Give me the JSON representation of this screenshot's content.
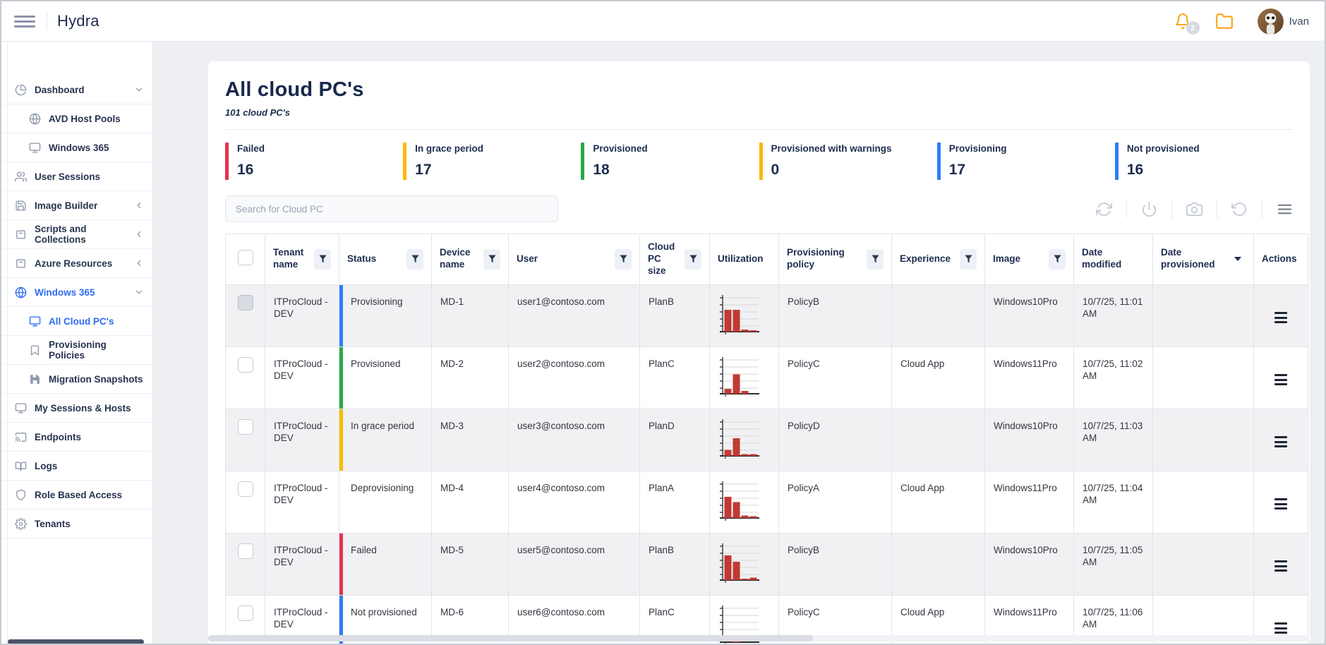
{
  "topbar": {
    "brand": "Hydra",
    "notification_badge": "2",
    "user_name": "Ivan"
  },
  "sidebar": {
    "items": [
      {
        "label": "Dashboard",
        "icon": "pie-chart",
        "level": 0,
        "chevron": "down",
        "active": false
      },
      {
        "label": "AVD Host Pools",
        "icon": "globe",
        "level": 1,
        "chevron": "",
        "active": false
      },
      {
        "label": "Windows 365",
        "icon": "monitor",
        "level": 1,
        "chevron": "",
        "active": false
      },
      {
        "label": "User Sessions",
        "icon": "users",
        "level": 0,
        "chevron": "",
        "active": false
      },
      {
        "label": "Image Builder",
        "icon": "save",
        "level": 0,
        "chevron": "left",
        "active": false
      },
      {
        "label": "Scripts and Collections",
        "icon": "archive",
        "level": 0,
        "chevron": "left",
        "active": false
      },
      {
        "label": "Azure Resources",
        "icon": "archive",
        "level": 0,
        "chevron": "left",
        "active": false
      },
      {
        "label": "Windows 365",
        "icon": "globe",
        "level": 0,
        "chevron": "down",
        "active": true
      },
      {
        "label": "All Cloud PC's",
        "icon": "monitor",
        "level": 1,
        "chevron": "",
        "active": true
      },
      {
        "label": "Provisioning Policies",
        "icon": "bookmark",
        "level": 1,
        "chevron": "",
        "active": false
      },
      {
        "label": "Migration Snapshots",
        "icon": "save-filled",
        "level": 1,
        "chevron": "",
        "active": false
      },
      {
        "label": "My Sessions & Hosts",
        "icon": "monitor",
        "level": 0,
        "chevron": "",
        "active": false
      },
      {
        "label": "Endpoints",
        "icon": "cast",
        "level": 0,
        "chevron": "",
        "active": false
      },
      {
        "label": "Logs",
        "icon": "book",
        "level": 0,
        "chevron": "",
        "active": false
      },
      {
        "label": "Role Based Access",
        "icon": "shield",
        "level": 0,
        "chevron": "",
        "active": false
      },
      {
        "label": "Tenants",
        "icon": "gear",
        "level": 0,
        "chevron": "",
        "active": false
      }
    ]
  },
  "page": {
    "title": "All cloud PC's",
    "subtitle": "101 cloud PC's"
  },
  "stats": [
    {
      "label": "Failed",
      "value": "16",
      "color": "#e23450"
    },
    {
      "label": "In grace period",
      "value": "17",
      "color": "#f7ba00"
    },
    {
      "label": "Provisioned",
      "value": "18",
      "color": "#2ba84a"
    },
    {
      "label": "Provisioned with warnings",
      "value": "0",
      "color": "#f7ba00"
    },
    {
      "label": "Provisioning",
      "value": "17",
      "color": "#2e7df6"
    },
    {
      "label": "Not provisioned",
      "value": "16",
      "color": "#2e7df6"
    }
  ],
  "search": {
    "placeholder": "Search for Cloud PC"
  },
  "toolbar": {
    "icons": [
      "refresh",
      "power",
      "camera",
      "undo",
      "menu"
    ]
  },
  "table": {
    "columns": [
      {
        "label": "Tenant name",
        "filter": true,
        "sort": false
      },
      {
        "label": "Status",
        "filter": true,
        "sort": false
      },
      {
        "label": "Device name",
        "filter": true,
        "sort": false
      },
      {
        "label": "User",
        "filter": true,
        "sort": false
      },
      {
        "label": "Cloud PC size",
        "filter": true,
        "sort": false
      },
      {
        "label": "Utilization",
        "filter": false,
        "sort": false
      },
      {
        "label": "Provisioning policy",
        "filter": true,
        "sort": false
      },
      {
        "label": "Experience",
        "filter": true,
        "sort": false
      },
      {
        "label": "Image",
        "filter": true,
        "sort": false
      },
      {
        "label": "Date modified",
        "filter": false,
        "sort": false
      },
      {
        "label": "Date provisioned",
        "filter": false,
        "sort": true
      },
      {
        "label": "Actions",
        "filter": false,
        "sort": false
      }
    ],
    "rows": [
      {
        "tenant": "ITProCloud - DEV",
        "status": "Provisioning",
        "status_color": "#2e7df6",
        "device": "MD-1",
        "user": "user1@contoso.com",
        "size": "PlanB",
        "utilization": [
          62,
          62,
          6,
          4
        ],
        "policy": "PolicyB",
        "experience": "",
        "image": "Windows10Pro",
        "modified": "10/7/25, 11:01 AM",
        "provisioned": ""
      },
      {
        "tenant": "ITProCloud - DEV",
        "status": "Provisioned",
        "status_color": "#2ba84a",
        "device": "MD-2",
        "user": "user2@contoso.com",
        "size": "PlanC",
        "utilization": [
          14,
          55,
          8,
          0
        ],
        "policy": "PolicyC",
        "experience": "Cloud App",
        "image": "Windows11Pro",
        "modified": "10/7/25, 11:02 AM",
        "provisioned": ""
      },
      {
        "tenant": "ITProCloud - DEV",
        "status": "In grace period",
        "status_color": "#f7ba00",
        "device": "MD-3",
        "user": "user3@contoso.com",
        "size": "PlanD",
        "utilization": [
          17,
          50,
          5,
          5
        ],
        "policy": "PolicyD",
        "experience": "",
        "image": "Windows10Pro",
        "modified": "10/7/25, 11:03 AM",
        "provisioned": ""
      },
      {
        "tenant": "ITProCloud - DEV",
        "status": "Deprovisioning",
        "status_color": "",
        "device": "MD-4",
        "user": "user4@contoso.com",
        "size": "PlanA",
        "utilization": [
          60,
          45,
          7,
          5
        ],
        "policy": "PolicyA",
        "experience": "Cloud App",
        "image": "Windows11Pro",
        "modified": "10/7/25, 11:04 AM",
        "provisioned": ""
      },
      {
        "tenant": "ITProCloud - DEV",
        "status": "Failed",
        "status_color": "#e23450",
        "device": "MD-5",
        "user": "user5@contoso.com",
        "size": "PlanB",
        "utilization": [
          70,
          52,
          4,
          7
        ],
        "policy": "PolicyB",
        "experience": "",
        "image": "Windows10Pro",
        "modified": "10/7/25, 11:05 AM",
        "provisioned": ""
      },
      {
        "tenant": "ITProCloud - DEV",
        "status": "Not provisioned",
        "status_color": "#2e7df6",
        "device": "MD-6",
        "user": "user6@contoso.com",
        "size": "PlanC",
        "utilization": [
          0,
          10,
          0,
          0
        ],
        "policy": "PolicyC",
        "experience": "Cloud App",
        "image": "Windows11Pro",
        "modified": "10/7/25, 11:06 AM",
        "provisioned": ""
      }
    ]
  }
}
